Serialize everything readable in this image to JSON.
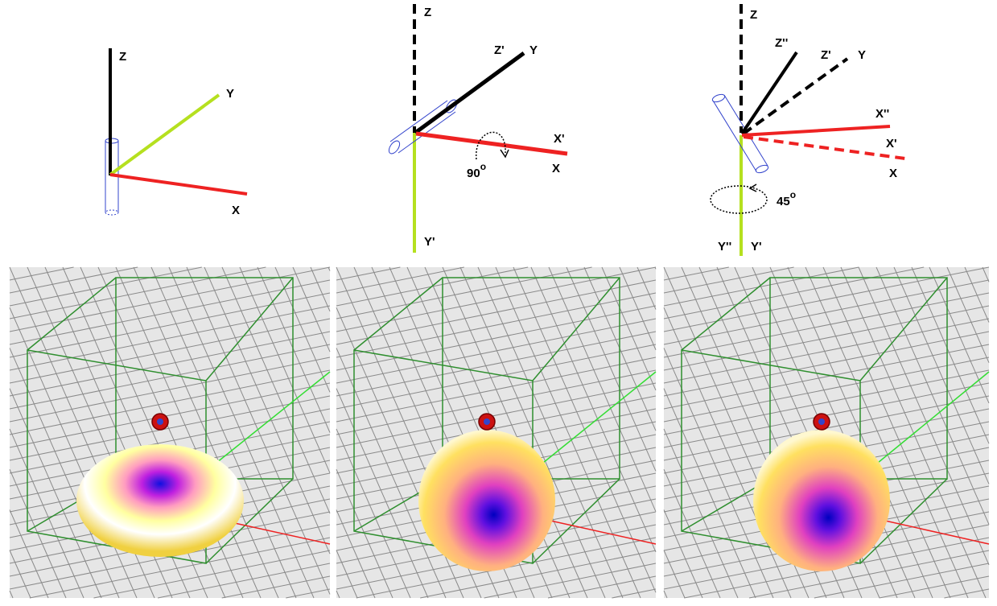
{
  "panels": [
    {
      "axes": {
        "z": "Z",
        "y": "Y",
        "x": "X"
      }
    },
    {
      "axes": {
        "z": "Z",
        "z_prime": "Z'",
        "y": "Y",
        "x_prime": "X'",
        "x": "X",
        "y_prime": "Y'"
      },
      "rotation": {
        "value": "90",
        "unit": "o"
      }
    },
    {
      "axes": {
        "z": "Z",
        "z_double": "Z''",
        "z_prime": "Z'",
        "y": "Y",
        "x_double": "X''",
        "x_prime": "X'",
        "x": "X",
        "y_double": "Y''",
        "y_prime": "Y'"
      },
      "rotation": {
        "value": "45",
        "unit": "o"
      }
    }
  ],
  "colors": {
    "x_axis": "#ee2222",
    "y_axis": "#b5e01f",
    "z_axis": "#000000",
    "dipole": "#3344cc",
    "box": "#2f8f2f",
    "grid_bg": "#e6e6e6",
    "grid_line": "#8a8a8a"
  }
}
